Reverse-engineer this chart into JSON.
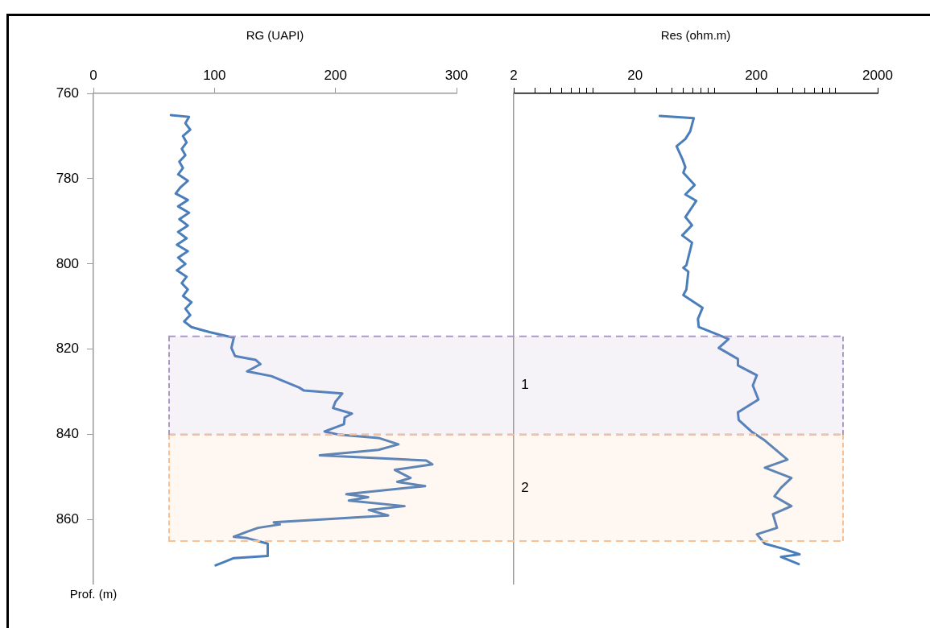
{
  "chart_data": [
    {
      "type": "line",
      "xlabel": "RG (UAPI)",
      "ylabel": "Prof. (m)",
      "xlim": [
        0,
        300
      ],
      "xticks": [
        0,
        100,
        200,
        300
      ],
      "ylim": [
        875,
        760
      ],
      "yticks": [
        760,
        780,
        800,
        820,
        840,
        860
      ],
      "grid": false,
      "legend": false,
      "series": [
        {
          "color": "#4a7ebb",
          "x": [
            64,
            79,
            76,
            80,
            74,
            77,
            73,
            76,
            71,
            74,
            70,
            78,
            72,
            68,
            78,
            70,
            79,
            71,
            78,
            70,
            77,
            69,
            78,
            70,
            76,
            69,
            77,
            73,
            78,
            74,
            81,
            76,
            80,
            75,
            81,
            96,
            116,
            114,
            117,
            134,
            138,
            127,
            147,
            170,
            174,
            205.6,
            200,
            198,
            213.6,
            207.6,
            207,
            191,
            202,
            235.5,
            252,
            235.5,
            187,
            275,
            280,
            249,
            262,
            251,
            274,
            209,
            227,
            211,
            257,
            227.5,
            243.5,
            149,
            154,
            136,
            127,
            116,
            127,
            144,
            144,
            116,
            107,
            101
          ],
          "values": [
            765.1,
            765.5,
            767,
            768.5,
            770,
            771.5,
            773,
            774.5,
            776,
            777.5,
            779,
            780.5,
            782,
            783.5,
            785,
            786.5,
            788,
            789.5,
            791,
            792.5,
            794,
            795.5,
            797,
            798.5,
            800,
            801.5,
            803,
            804.5,
            806,
            807.5,
            809,
            810.5,
            812,
            813.5,
            814.8,
            816,
            817.3,
            819.7,
            821.6,
            822.5,
            823.5,
            825.2,
            826.3,
            829,
            829.7,
            830.4,
            832.3,
            833.8,
            835.1,
            836,
            837.6,
            839.3,
            840,
            840.8,
            842.3,
            843.6,
            844.9,
            846.1,
            847,
            848.3,
            850.2,
            851.1,
            852.1,
            854,
            854.7,
            855.5,
            856.8,
            857.7,
            859,
            860.6,
            861.1,
            861.9,
            862.8,
            864,
            864.3,
            865.6,
            868.5,
            869,
            870,
            870.7
          ]
        }
      ],
      "ref_lines": [
        {
          "axis": "y",
          "value": 817,
          "color": "#ab9ac8",
          "line_style": "dashed"
        },
        {
          "axis": "y",
          "value": 840,
          "color": "#ab9ac8",
          "line_style": "dashed"
        },
        {
          "axis": "y",
          "value": 840,
          "color": "#fac090",
          "line_style": "dashed"
        },
        {
          "axis": "y",
          "value": 865,
          "color": "#fac090",
          "line_style": "dashed"
        }
      ],
      "bands": [
        {
          "axis": "y",
          "from": 817,
          "to": 840,
          "color": "#ab9ac8"
        },
        {
          "axis": "y",
          "from": 840,
          "to": 865,
          "color": "#fac090"
        }
      ]
    },
    {
      "type": "line",
      "xlabel": "Res (ohm.m)",
      "log": "x",
      "xlim": [
        2,
        2000
      ],
      "xticks": [
        2,
        {
          "value": 3,
          "label": null
        },
        {
          "value": 4,
          "label": null
        },
        {
          "value": 5,
          "label": null
        },
        {
          "value": 6,
          "label": null
        },
        {
          "value": 7,
          "label": null
        },
        {
          "value": 8,
          "label": null
        },
        {
          "value": 9,
          "label": null
        },
        20,
        {
          "value": 30,
          "label": null
        },
        {
          "value": 40,
          "label": null
        },
        {
          "value": 50,
          "label": null
        },
        {
          "value": 60,
          "label": null
        },
        {
          "value": 70,
          "label": null
        },
        {
          "value": 80,
          "label": null
        },
        {
          "value": 90,
          "label": null
        },
        200,
        {
          "value": 300,
          "label": null
        },
        {
          "value": 400,
          "label": null
        },
        {
          "value": 500,
          "label": null
        },
        {
          "value": 600,
          "label": null
        },
        {
          "value": 700,
          "label": null
        },
        {
          "value": 800,
          "label": null
        },
        {
          "value": 900,
          "label": null
        },
        2000
      ],
      "ylim": [
        875,
        760
      ],
      "tick_labels": "x",
      "grid": false,
      "legend": false,
      "series": [
        {
          "color": "#4a7ebb",
          "x": [
            32,
            61,
            57,
            52,
            44,
            49,
            52,
            50,
            62,
            52,
            64,
            52,
            59,
            49,
            59,
            53,
            50,
            55,
            53,
            50,
            72,
            66,
            67,
            91,
            118,
            98,
            141,
            141,
            202,
            187,
            208,
            141,
            143,
            182,
            235,
            361,
            235,
            389,
            319,
            282,
            389,
            274,
            296,
            202,
            235,
            334,
            454,
            319,
            447
          ],
          "values": [
            765.3,
            765.8,
            768.9,
            770.7,
            772.4,
            775.3,
            777.3,
            778.6,
            781.5,
            783.7,
            785.2,
            789,
            790.9,
            793.3,
            795,
            800.3,
            800.9,
            801.8,
            806,
            807.3,
            810.3,
            812.9,
            814.8,
            816.3,
            817.6,
            819.7,
            822.3,
            823.8,
            826.1,
            828.5,
            831.8,
            834.8,
            836.6,
            839.3,
            841.4,
            845.9,
            847.8,
            850.2,
            852.5,
            854.5,
            856.8,
            858.7,
            861.9,
            863.4,
            865.6,
            866.8,
            868.1,
            868.7,
            870.4
          ]
        }
      ],
      "ref_lines": [
        {
          "axis": "y",
          "value": 817,
          "color": "#ab9ac8",
          "line_style": "dashed"
        },
        {
          "axis": "y",
          "value": 840,
          "color": "#ab9ac8",
          "line_style": "dashed"
        },
        {
          "axis": "y",
          "value": 840,
          "color": "#fac090",
          "line_style": "dashed"
        },
        {
          "axis": "y",
          "value": 865,
          "color": "#fac090",
          "line_style": "dashed"
        }
      ],
      "bands": [
        {
          "axis": "y",
          "from": 817,
          "to": 840,
          "label": "1",
          "color": "#ab9ac8"
        },
        {
          "axis": "y",
          "from": 840,
          "to": 865,
          "label": "2",
          "color": "#fac090"
        }
      ]
    }
  ]
}
